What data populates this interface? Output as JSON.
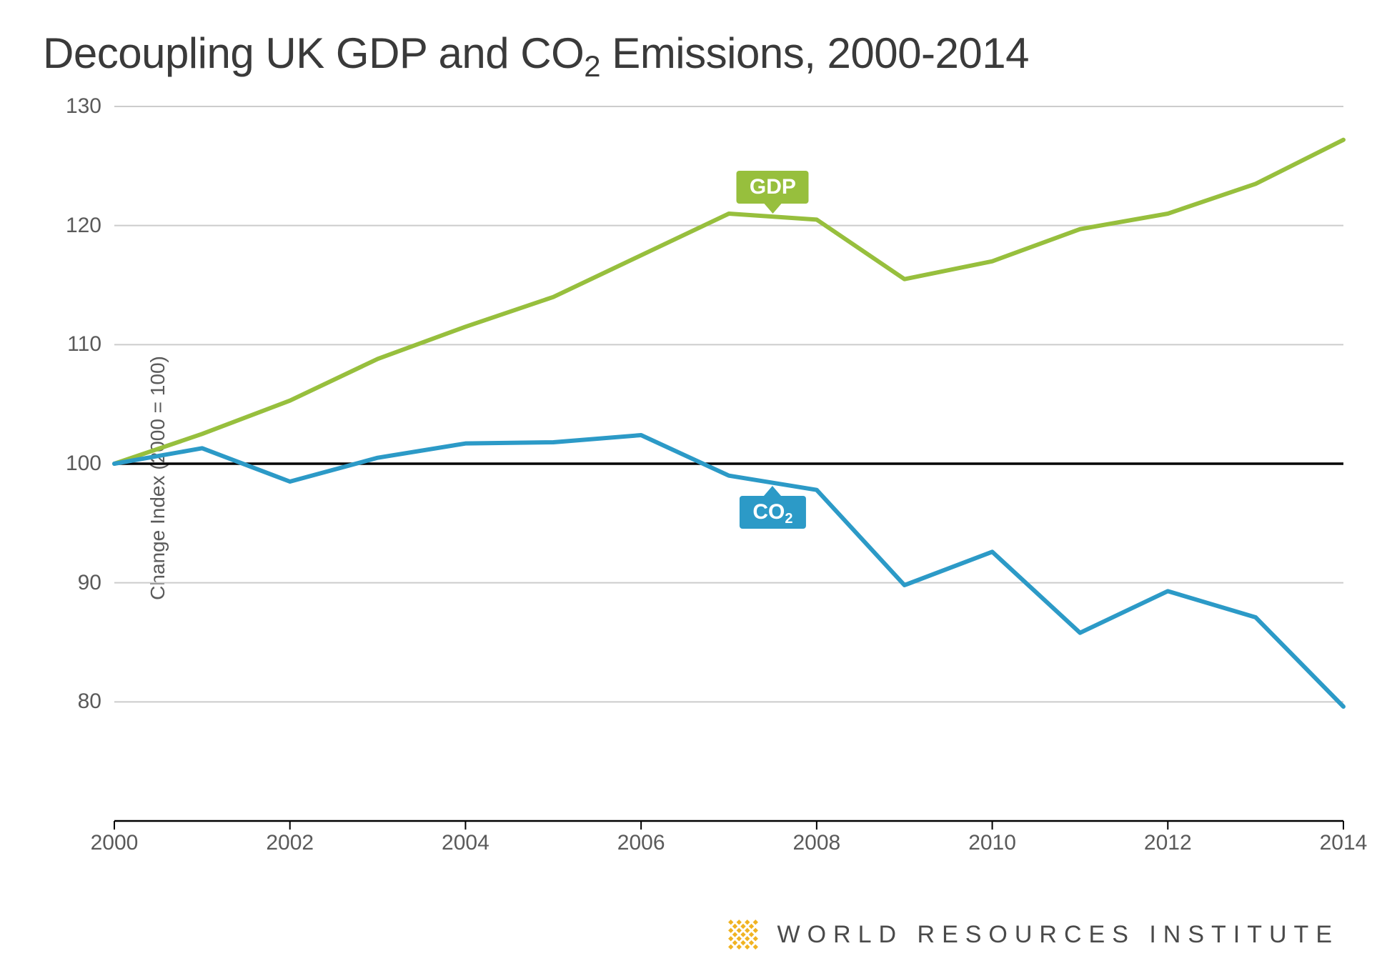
{
  "title_html": "Decoupling UK GDP and CO<sub>2</sub> Emissions, 2000-2014",
  "ylabel": "Change Index (2000 = 100)",
  "chart": {
    "type": "line",
    "background_color": "#ffffff",
    "grid_color": "#cccccc",
    "baseline_color": "#000000",
    "baseline_value": 100,
    "axis_color": "#000000",
    "xlim": [
      2000,
      2014
    ],
    "ylim": [
      70,
      130
    ],
    "yticks": [
      70,
      80,
      90,
      100,
      110,
      120,
      130
    ],
    "xticks": [
      2000,
      2002,
      2004,
      2006,
      2008,
      2010,
      2012,
      2014
    ],
    "tick_fontsize": 30,
    "tick_color": "#5a5a5a",
    "line_width": 6,
    "series": [
      {
        "name": "GDP",
        "label_html": "GDP",
        "color": "#97bf3d",
        "label_anchor_year": 2007.5,
        "label_position": "below",
        "x": [
          2000,
          2001,
          2002,
          2003,
          2004,
          2005,
          2006,
          2007,
          2008,
          2009,
          2010,
          2011,
          2012,
          2013,
          2014
        ],
        "y": [
          100,
          102.5,
          105.3,
          108.8,
          111.5,
          114.0,
          117.5,
          121.0,
          120.5,
          115.5,
          117.0,
          119.7,
          121.0,
          123.5,
          127.2
        ]
      },
      {
        "name": "CO2",
        "label_html": "CO<sub>2</sub>",
        "color": "#2c9ac7",
        "label_anchor_year": 2007.5,
        "label_position": "above",
        "x": [
          2000,
          2001,
          2002,
          2003,
          2004,
          2005,
          2006,
          2007,
          2008,
          2009,
          2010,
          2011,
          2012,
          2013,
          2014
        ],
        "y": [
          100,
          101.3,
          98.5,
          100.5,
          101.7,
          101.8,
          102.4,
          99.0,
          97.8,
          89.8,
          92.6,
          85.8,
          89.3,
          87.1,
          79.6
        ]
      }
    ]
  },
  "footer": {
    "org_text": "WORLD RESOURCES INSTITUTE",
    "logo_color": "#f0b323",
    "text_color": "#4a4a4a"
  }
}
